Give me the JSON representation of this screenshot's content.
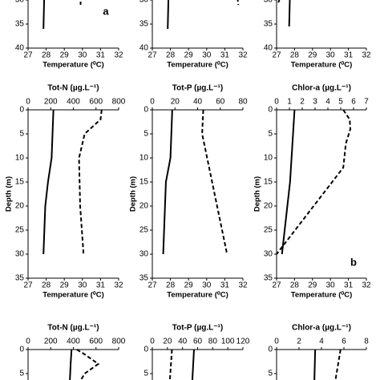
{
  "chart_data": [
    {
      "type": "line",
      "xlabel": "Temperature (⁰C)",
      "xlim": [
        27,
        32
      ],
      "xticks": [
        27,
        28,
        29,
        30,
        31,
        32
      ],
      "ylim": [
        0,
        40
      ],
      "yticks": [
        30,
        35,
        40
      ],
      "annotation": "a",
      "series": [
        {
          "axis": "x",
          "style": "solid",
          "color": "#000000",
          "depth": [
            28,
            36
          ],
          "values": [
            27.9,
            27.85
          ]
        },
        {
          "axis": "x",
          "style": "dashed",
          "color": "#000000",
          "depth": [
            29,
            31
          ],
          "values": [
            29.9,
            29.9
          ]
        }
      ]
    },
    {
      "type": "line",
      "xlabel": "Temperature (⁰C)",
      "xlim": [
        27,
        32
      ],
      "xticks": [
        27,
        28,
        29,
        30,
        31,
        32
      ],
      "ylim": [
        0,
        40
      ],
      "yticks": [
        30,
        35,
        40
      ],
      "series": [
        {
          "axis": "x",
          "style": "solid",
          "color": "#000000",
          "depth": [
            28,
            36
          ],
          "values": [
            27.9,
            27.85
          ]
        },
        {
          "axis": "x",
          "style": "dashed",
          "color": "#000000",
          "depth": [
            29.5,
            31
          ],
          "values": [
            31.7,
            31.75
          ]
        }
      ]
    },
    {
      "type": "line",
      "xlabel": "Temperature (⁰C)",
      "xlim": [
        27,
        32
      ],
      "xticks": [
        27,
        28,
        29,
        30,
        31,
        32
      ],
      "ylim": [
        0,
        40
      ],
      "yticks": [
        30,
        35,
        40
      ],
      "series": [
        {
          "axis": "x",
          "style": "solid",
          "color": "#000000",
          "depth": [
            28,
            35.5
          ],
          "values": [
            27.75,
            27.7
          ]
        },
        {
          "axis": "x",
          "style": "dashed",
          "color": "#000000",
          "depth": [
            28.5,
            31
          ],
          "values": [
            27.3,
            27.05
          ]
        }
      ]
    },
    {
      "type": "line",
      "title": "Tot-N (µg.L⁻¹)",
      "xlabel": "Temperature (⁰C)",
      "ylabel": "Depth (m)",
      "xlim": [
        27,
        32
      ],
      "xticks": [
        27,
        28,
        29,
        30,
        31,
        32
      ],
      "x2lim": [
        0,
        800
      ],
      "x2ticks": [
        0,
        200,
        400,
        600,
        800
      ],
      "ylim": [
        0,
        35
      ],
      "yticks": [
        0,
        5,
        10,
        15,
        20,
        25,
        30,
        35
      ],
      "series": [
        {
          "axis": "x",
          "style": "solid",
          "color": "#000000",
          "depth": [
            0,
            5,
            10,
            15,
            20,
            30
          ],
          "values": [
            28.4,
            28.35,
            28.3,
            28.1,
            27.95,
            27.85
          ]
        },
        {
          "axis": "x2",
          "style": "dashed",
          "color": "#000000",
          "depth": [
            0,
            2,
            5,
            10,
            20,
            30
          ],
          "values": [
            650,
            640,
            500,
            450,
            460,
            490
          ]
        }
      ]
    },
    {
      "type": "line",
      "title": "Tot-P (µg.L⁻¹)",
      "xlabel": "Temperature (⁰C)",
      "ylabel": "Depth (m)",
      "xlim": [
        27,
        32
      ],
      "xticks": [
        27,
        28,
        29,
        30,
        31,
        32
      ],
      "x2lim": [
        0,
        80
      ],
      "x2ticks": [
        0,
        20,
        40,
        60,
        80
      ],
      "ylim": [
        0,
        35
      ],
      "yticks": [
        0,
        5,
        10,
        15,
        20,
        25,
        30,
        35
      ],
      "series": [
        {
          "axis": "x",
          "style": "solid",
          "color": "#000000",
          "depth": [
            0,
            10,
            15,
            30
          ],
          "values": [
            28.1,
            28.0,
            27.75,
            27.6
          ]
        },
        {
          "axis": "x2",
          "style": "dashed",
          "color": "#000000",
          "depth": [
            0,
            5,
            30
          ],
          "values": [
            45,
            44,
            66
          ]
        }
      ]
    },
    {
      "type": "line",
      "title": "Chlor-a (µg.L⁻¹)",
      "xlabel": "Temperature (⁰C)",
      "ylabel": "Depth (m)",
      "xlim": [
        27,
        32
      ],
      "xticks": [
        27,
        28,
        29,
        30,
        31,
        32
      ],
      "x2lim": [
        0,
        7
      ],
      "x2ticks": [
        0,
        1,
        2,
        3,
        4,
        5,
        6,
        7
      ],
      "ylim": [
        0,
        35
      ],
      "yticks": [
        0,
        5,
        10,
        15,
        20,
        25,
        30,
        35
      ],
      "annotation": "b",
      "series": [
        {
          "axis": "x",
          "style": "solid",
          "color": "#000000",
          "depth": [
            0,
            15,
            30
          ],
          "values": [
            28.0,
            27.75,
            27.3
          ]
        },
        {
          "axis": "x2",
          "style": "dashed",
          "color": "#000000",
          "depth": [
            0,
            2,
            4,
            7,
            12,
            30
          ],
          "values": [
            5.2,
            5.7,
            5.75,
            5.4,
            5.2,
            0
          ]
        }
      ]
    },
    {
      "type": "line",
      "title": "Tot-N (µg.L⁻¹)",
      "xlim": [
        27,
        32
      ],
      "x2lim": [
        0,
        800
      ],
      "x2ticks": [
        0,
        200,
        400,
        600,
        800
      ],
      "ylim": [
        0,
        35
      ],
      "yticks": [
        0,
        5
      ],
      "series": [
        {
          "axis": "x",
          "style": "solid",
          "color": "#000000",
          "depth": [
            0,
            3,
            7
          ],
          "values": [
            29.4,
            29.35,
            29.3
          ]
        },
        {
          "axis": "x2",
          "style": "dashed",
          "color": "#000000",
          "depth": [
            0,
            1,
            3,
            5,
            7
          ],
          "values": [
            430,
            500,
            620,
            500,
            450
          ]
        }
      ]
    },
    {
      "type": "line",
      "title": "Tot-P (µg.L⁻¹)",
      "xlim": [
        27,
        32
      ],
      "x2lim": [
        0,
        120
      ],
      "x2ticks": [
        0,
        20,
        40,
        60,
        80,
        100,
        120
      ],
      "ylim": [
        0,
        35
      ],
      "yticks": [
        0,
        5
      ],
      "series": [
        {
          "axis": "x",
          "style": "solid",
          "color": "#000000",
          "depth": [
            0,
            7
          ],
          "values": [
            29.3,
            29.2
          ]
        },
        {
          "axis": "x2",
          "style": "dashed",
          "color": "#000000",
          "depth": [
            0,
            7
          ],
          "values": [
            26,
            23
          ]
        }
      ]
    },
    {
      "type": "line",
      "title": "Chlor-a (µg.L⁻¹)",
      "xlim": [
        27,
        32
      ],
      "x2lim": [
        0,
        8
      ],
      "x2ticks": [
        0,
        2,
        4,
        6,
        8
      ],
      "ylim": [
        0,
        35
      ],
      "yticks": [
        0,
        5
      ],
      "series": [
        {
          "axis": "x",
          "style": "solid",
          "color": "#000000",
          "depth": [
            0,
            7
          ],
          "values": [
            29.15,
            29.1
          ]
        },
        {
          "axis": "x2",
          "style": "dashed",
          "color": "#000000",
          "depth": [
            0,
            7
          ],
          "values": [
            5.7,
            5.2
          ]
        }
      ]
    }
  ]
}
